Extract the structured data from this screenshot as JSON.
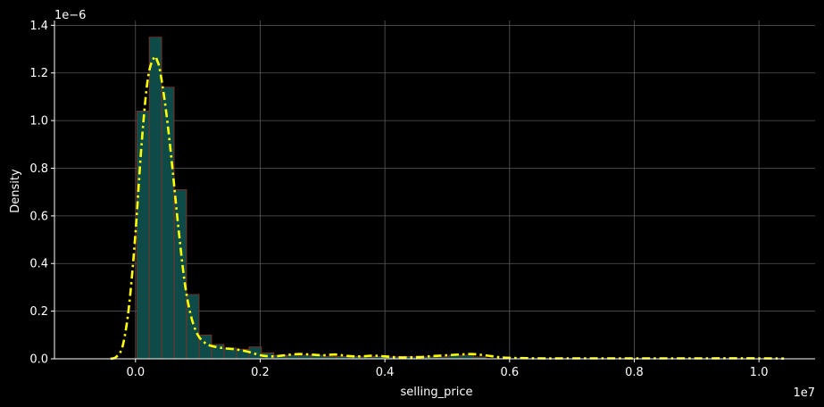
{
  "chart_data": {
    "type": "histogram",
    "xlabel": "selling_price",
    "ylabel": "Density",
    "x_offset_text": "1e7",
    "y_offset_text": "1e−6",
    "xlim": [
      -1300000,
      10900000
    ],
    "ylim": [
      0,
      1.42e-06
    ],
    "xticks": [
      0,
      2000000,
      4000000,
      6000000,
      8000000,
      10000000
    ],
    "xtick_labels": [
      "0.0",
      "0.2",
      "0.4",
      "0.6",
      "0.8",
      "1.0"
    ],
    "yticks": [
      0,
      2e-07,
      4e-07,
      6e-07,
      8e-07,
      1e-06,
      1.2e-06,
      1.4e-06
    ],
    "ytick_labels": [
      "0.0",
      "0.2",
      "0.4",
      "0.6",
      "0.8",
      "1.0",
      "1.2",
      "1.4"
    ],
    "grid": true,
    "bins": {
      "start": 20000,
      "width": 200000,
      "densities": [
        1.04e-06,
        1.35e-06,
        1.14e-06,
        7.1e-07,
        2.7e-07,
        1e-07,
        6e-08,
        4.5e-08,
        4e-08,
        5e-08,
        2.5e-08,
        1.5e-08,
        1.5e-08,
        1.5e-08,
        1.5e-08,
        1e-08,
        1e-08,
        1e-08,
        8e-09,
        1e-08,
        8e-09,
        1e-08,
        8e-09,
        8e-09,
        8e-09,
        1.5e-08,
        1.5e-08,
        8e-09
      ]
    },
    "kde": {
      "x": [
        -400000,
        -300000,
        -200000,
        -100000,
        0,
        100000,
        200000,
        300000,
        350000,
        400000,
        500000,
        600000,
        700000,
        800000,
        900000,
        1000000,
        1100000,
        1200000,
        1400000,
        1600000,
        1800000,
        2000000,
        2200000,
        2400000,
        2600000,
        2800000,
        3000000,
        3200000,
        3400000,
        3600000,
        3800000,
        4000000,
        4200000,
        4400000,
        4600000,
        4800000,
        5000000,
        5200000,
        5400000,
        5600000,
        5800000,
        6000000,
        6500000,
        7000000,
        8000000,
        9000000,
        10000000,
        10400000
      ],
      "y": [
        0,
        1e-08,
        6e-08,
        2.3e-07,
        5.3e-07,
        9.1e-07,
        1.18e-06,
        1.265e-06,
        1.25e-06,
        1.2e-06,
        1.02e-06,
        7.8e-07,
        5.2e-07,
        3e-07,
        1.7e-07,
        1e-07,
        7e-08,
        5.5e-08,
        4.5e-08,
        4e-08,
        3e-08,
        1.5e-08,
        1e-08,
        1.5e-08,
        2e-08,
        1.8e-08,
        1.5e-08,
        1.8e-08,
        1.2e-08,
        1e-08,
        1.3e-08,
        1e-08,
        6e-09,
        6e-09,
        8e-09,
        1.2e-08,
        1.5e-08,
        1.8e-08,
        2e-08,
        1.5e-08,
        8e-09,
        4e-09,
        2e-09,
        2e-09,
        2e-09,
        2e-09,
        2e-09,
        1e-09
      ]
    },
    "colors": {
      "background": "#000000",
      "bar_fill": "#0d4a48",
      "bar_edge": "#8b2f1f",
      "kde_line": "#ffff00",
      "grid": "#5a5a5a",
      "axis": "#ffffff",
      "text": "#ffffff"
    }
  }
}
